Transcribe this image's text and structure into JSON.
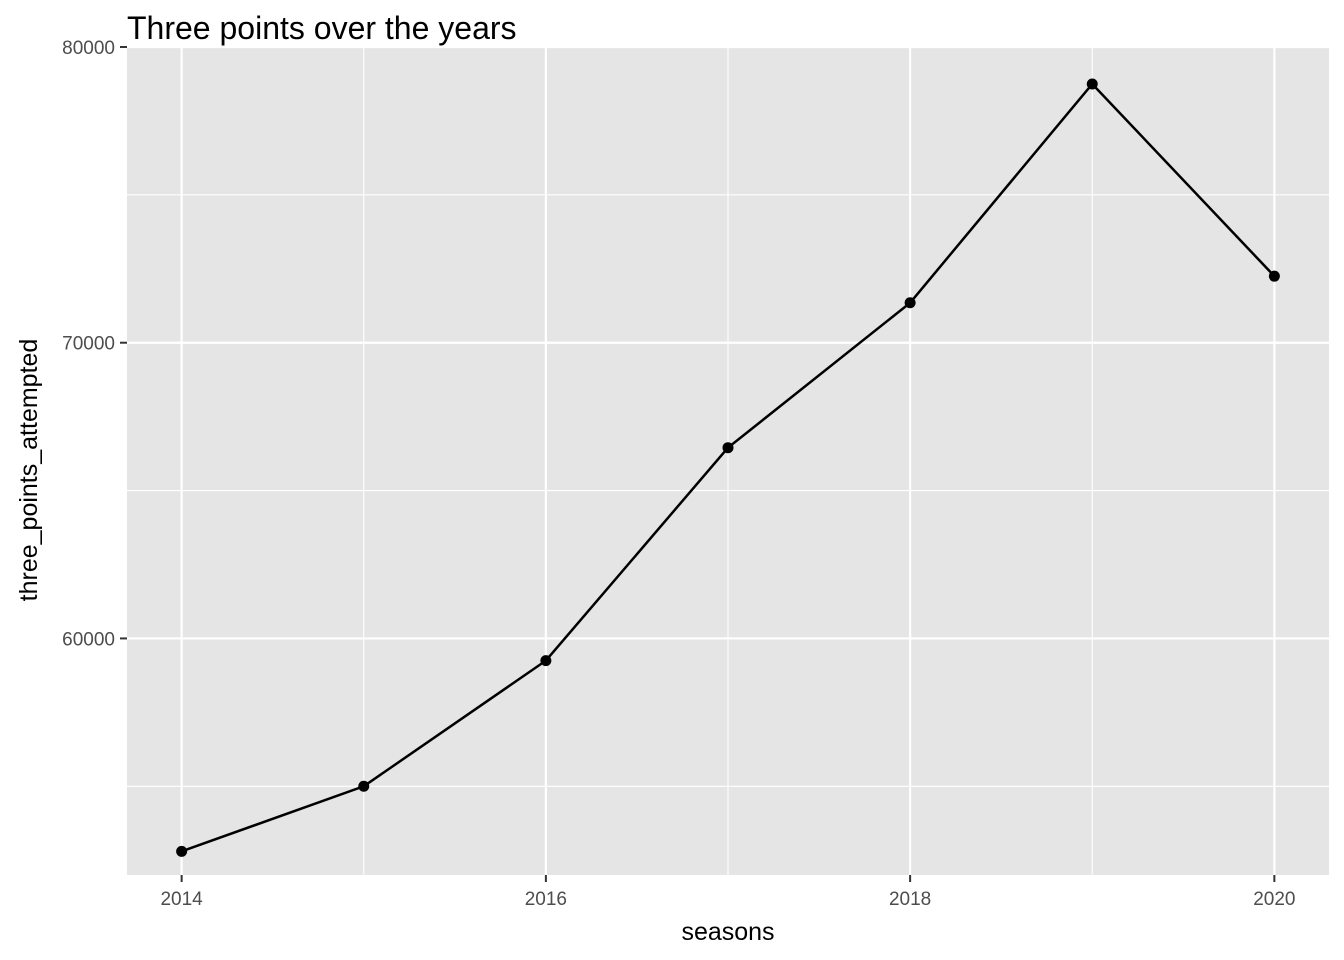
{
  "chart_data": {
    "type": "line",
    "title": "Three points over the years",
    "xlabel": "seasons",
    "ylabel": "three_points_attempted",
    "x": [
      2014,
      2015,
      2016,
      2017,
      2018,
      2019,
      2020
    ],
    "series": [
      {
        "values": [
          52800,
          55000,
          59250,
          66450,
          71350,
          78750,
          72250
        ]
      }
    ],
    "xlim": [
      2013.7,
      2020.3
    ],
    "ylim": [
      52000,
      80000
    ],
    "x_ticks": [
      2014,
      2016,
      2018,
      2020
    ],
    "x_tick_labels": [
      "2014",
      "2016",
      "2018",
      "2020"
    ],
    "y_ticks": [
      60000,
      70000,
      80000
    ],
    "y_tick_labels": [
      "60000",
      "70000",
      "80000"
    ],
    "x_minor": [
      2015,
      2017,
      2019
    ],
    "y_minor": [
      55000,
      65000,
      75000
    ],
    "grid": true,
    "legend": "none",
    "colors": {
      "panel": "#e5e5e5",
      "grid": "#ffffff",
      "line": "#000000"
    }
  }
}
